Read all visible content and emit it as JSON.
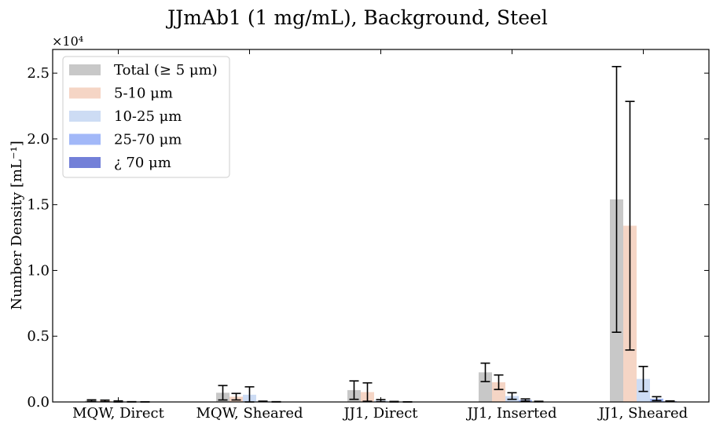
{
  "chart_data": {
    "type": "bar",
    "title": "JJmAb1 (1 mg/mL), Background, Steel",
    "ylabel": "Number Density [mL⁻¹]",
    "xlabel": "",
    "y_scale_label": "×10⁴",
    "ylim": [
      0,
      26800
    ],
    "y_ticks": [
      0,
      5000,
      10000,
      15000,
      20000,
      25000
    ],
    "y_tick_labels": [
      "0.0",
      "0.5",
      "1.0",
      "1.5",
      "2.0",
      "2.5"
    ],
    "categories": [
      "MQW, Direct",
      "MQW, Sheared",
      "JJ1, Direct",
      "JJ1, Inserted",
      "JJ1, Sheared"
    ],
    "legend_position": "top-left",
    "series": [
      {
        "name": "Total (≥ 5 μm)",
        "color": "#c8c8c8",
        "values": [
          100,
          700,
          900,
          2250,
          15400
        ],
        "errors": [
          60,
          550,
          700,
          700,
          10100
        ]
      },
      {
        "name": "5-10 μm",
        "color": "#f5d5c5",
        "values": [
          80,
          400,
          750,
          1500,
          13400
        ],
        "errors": [
          60,
          250,
          700,
          550,
          9450
        ]
      },
      {
        "name": "10-25 μm",
        "color": "#cddcf4",
        "values": [
          40,
          550,
          100,
          450,
          1750
        ],
        "errors": [
          40,
          600,
          80,
          250,
          950
        ]
      },
      {
        "name": "25-70 μm",
        "color": "#a2b8f8",
        "values": [
          10,
          40,
          20,
          150,
          250
        ],
        "errors": [
          10,
          20,
          20,
          80,
          150
        ]
      },
      {
        "name": "¿ 70 μm",
        "color": "#7380d8",
        "values": [
          5,
          10,
          5,
          30,
          50
        ],
        "errors": [
          5,
          10,
          5,
          20,
          30
        ]
      }
    ]
  }
}
